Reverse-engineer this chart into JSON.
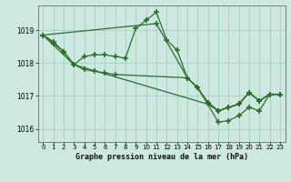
{
  "xlabel": "Graphe pression niveau de la mer (hPa)",
  "background_color": "#cce8e0",
  "grid_color": "#99ccbb",
  "line_color": "#2d6e2d",
  "xlim": [
    -0.5,
    23.5
  ],
  "ylim": [
    1015.6,
    1019.75
  ],
  "yticks": [
    1016,
    1017,
    1018,
    1019
  ],
  "xticks": [
    0,
    1,
    2,
    3,
    4,
    5,
    6,
    7,
    8,
    9,
    10,
    11,
    12,
    13,
    14,
    15,
    16,
    17,
    18,
    19,
    20,
    21,
    22,
    23
  ],
  "line1_x": [
    0,
    1,
    2,
    3,
    4,
    5,
    6,
    7,
    8,
    9,
    10,
    11,
    12,
    13,
    14,
    15,
    16,
    17,
    18,
    19,
    20,
    21,
    22,
    23
  ],
  "line1_y": [
    1018.85,
    1018.65,
    1018.35,
    1017.95,
    1018.2,
    1018.25,
    1018.25,
    1018.2,
    1018.15,
    1019.05,
    1019.3,
    1019.55,
    1018.7,
    1018.4,
    1017.55,
    1017.25,
    1016.8,
    1016.55,
    1016.65,
    1016.75,
    1017.1,
    1016.85,
    1017.05,
    1017.05
  ],
  "line2_x": [
    0,
    1,
    2,
    3,
    4,
    5,
    6,
    7,
    14,
    15,
    16,
    17,
    18,
    19,
    20,
    21,
    22,
    23
  ],
  "line2_y": [
    1018.85,
    1018.6,
    1018.35,
    1017.95,
    1017.8,
    1017.75,
    1017.7,
    1017.65,
    1017.55,
    1017.25,
    1016.8,
    1016.55,
    1016.65,
    1016.75,
    1017.1,
    1016.85,
    1017.05,
    1017.05
  ],
  "line3_x": [
    0,
    11,
    14,
    15,
    16,
    17,
    18,
    19,
    20,
    21,
    22,
    23
  ],
  "line3_y": [
    1018.85,
    1019.2,
    1017.55,
    1017.25,
    1016.75,
    1016.55,
    1016.65,
    1016.75,
    1017.1,
    1016.85,
    1017.05,
    1017.05
  ],
  "line4_x": [
    0,
    3,
    16,
    17,
    18,
    19,
    20,
    21,
    22,
    23
  ],
  "line4_y": [
    1018.85,
    1017.95,
    1016.75,
    1016.2,
    1016.25,
    1016.4,
    1016.65,
    1016.55,
    1017.05,
    1017.05
  ]
}
